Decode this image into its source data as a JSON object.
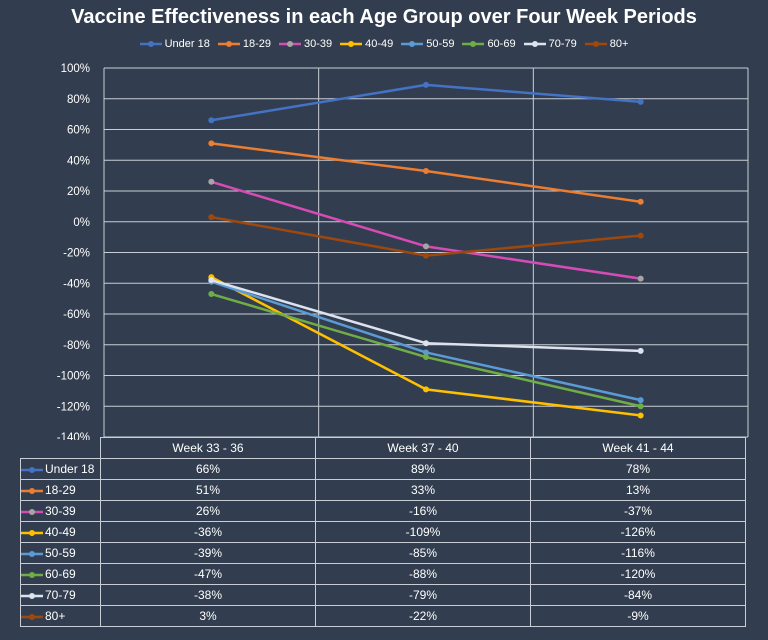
{
  "chart_data": {
    "type": "line",
    "title": "Vaccine Effectiveness in each Age Group over Four Week Periods",
    "categories": [
      "Week 33 - 36",
      "Week 37 - 40",
      "Week 41 - 44"
    ],
    "ylim": [
      -140,
      100
    ],
    "ytick_step": 20,
    "y_unit": "%",
    "grid": true,
    "legend_position": "top",
    "series": [
      {
        "name": "Under 18",
        "color": "#4472c4",
        "values": [
          66,
          89,
          78
        ],
        "labels": [
          "66%",
          "89%",
          "78%"
        ]
      },
      {
        "name": "18-29",
        "color": "#ed7d31",
        "values": [
          51,
          33,
          13
        ],
        "labels": [
          "51%",
          "33%",
          "13%"
        ]
      },
      {
        "name": "30-39",
        "color": "#d64bb5",
        "marker_color": "#a5a5a5",
        "values": [
          26,
          -16,
          -37
        ],
        "labels": [
          "26%",
          "-16%",
          "-37%"
        ]
      },
      {
        "name": "40-49",
        "color": "#ffc000",
        "values": [
          -36,
          -109,
          -126
        ],
        "labels": [
          "-36%",
          "-109%",
          "-126%"
        ]
      },
      {
        "name": "50-59",
        "color": "#5b9bd5",
        "values": [
          -39,
          -85,
          -116
        ],
        "labels": [
          "-39%",
          "-85%",
          "-116%"
        ]
      },
      {
        "name": "60-69",
        "color": "#70ad47",
        "values": [
          -47,
          -88,
          -120
        ],
        "labels": [
          "-47%",
          "-88%",
          "-120%"
        ]
      },
      {
        "name": "70-79",
        "color": "#dce3ee",
        "values": [
          -38,
          -79,
          -84
        ],
        "labels": [
          "-38%",
          "-79%",
          "-84%"
        ]
      },
      {
        "name": "80+",
        "color": "#9e480e",
        "values": [
          3,
          -22,
          -9
        ],
        "labels": [
          "3%",
          "-22%",
          "-9%"
        ]
      }
    ]
  }
}
